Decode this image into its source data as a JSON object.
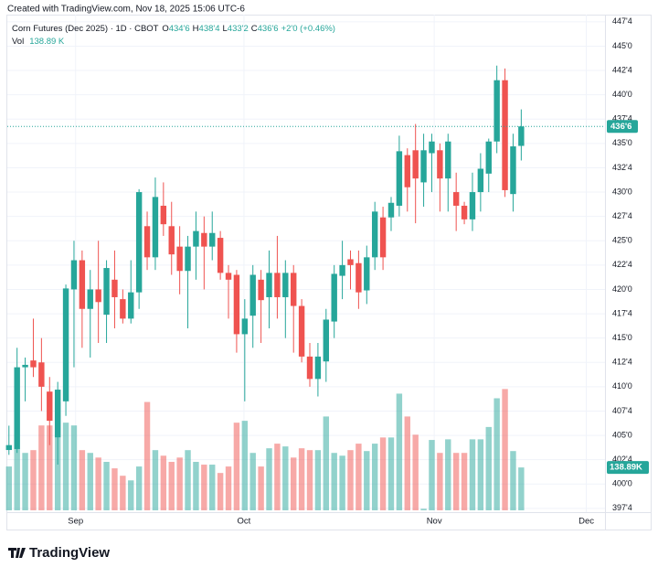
{
  "chart_data": {
    "type": "candlestick",
    "created": "Created with TradingView.com, Nov 18, 2025 15:06 UTC-6",
    "symbol": "Corn Futures (Dec 2025) · 1D · CBOT",
    "ohlc_legend": [
      {
        "label": "O",
        "value": "434'6"
      },
      {
        "label": "H",
        "value": "438'4"
      },
      {
        "label": "L",
        "value": "433'2"
      },
      {
        "label": "C",
        "value": "436'6"
      }
    ],
    "change": "+2'0 (+0.46%)",
    "volume_legend": {
      "label": "Vol",
      "value": "138.89 K"
    },
    "brand": "TradingView",
    "up_color": "#26a69a",
    "down_color": "#ef5350",
    "grid": true,
    "xlim": [
      -0.2,
      73.3
    ],
    "xticks": [
      {
        "value": 8.2,
        "label": "Sep"
      },
      {
        "value": 28.9,
        "label": "Oct"
      },
      {
        "value": 52.3,
        "label": "Nov"
      },
      {
        "value": 71.0,
        "label": "Dec"
      }
    ],
    "ylim": [
      397.3,
      448.05
    ],
    "yticks": [
      {
        "value": 397.5,
        "label": "397'4"
      },
      {
        "value": 400,
        "label": "400'0"
      },
      {
        "value": 402.5,
        "label": "402'4"
      },
      {
        "value": 405,
        "label": "405'0"
      },
      {
        "value": 407.5,
        "label": "407'4"
      },
      {
        "value": 410,
        "label": "410'0"
      },
      {
        "value": 412.5,
        "label": "412'4"
      },
      {
        "value": 415,
        "label": "415'0"
      },
      {
        "value": 417.5,
        "label": "417'4"
      },
      {
        "value": 420,
        "label": "420'0"
      },
      {
        "value": 422.5,
        "label": "422'4"
      },
      {
        "value": 425,
        "label": "425'0"
      },
      {
        "value": 427.5,
        "label": "427'4"
      },
      {
        "value": 430,
        "label": "430'0"
      },
      {
        "value": 432.5,
        "label": "432'4"
      },
      {
        "value": 435,
        "label": "435'0"
      },
      {
        "value": 437.5,
        "label": "437'4"
      },
      {
        "value": 440,
        "label": "440'0"
      },
      {
        "value": 442.5,
        "label": "442'4"
      },
      {
        "value": 445,
        "label": "445'0"
      },
      {
        "value": 447.5,
        "label": "447'4"
      }
    ],
    "last_price": {
      "value": 436.75,
      "label": "436'6"
    },
    "y2lim": [
      0,
      1600
    ],
    "open": [
      403.5,
      403.6,
      412,
      412.7,
      412.5,
      409.5,
      404.8,
      408.5,
      420,
      423,
      418,
      420,
      417.4,
      421,
      419,
      417,
      419.7,
      426.5,
      423.3,
      428.6,
      426.5,
      424.4,
      421.9,
      424.4,
      425.8,
      424.4,
      425.3,
      421.7,
      421.5,
      415.4,
      417.3,
      421,
      419.2,
      421.7,
      419.2,
      421.7,
      418.3,
      413.1,
      410.8,
      412.6,
      416.7,
      421.4,
      423.1,
      422.7,
      419.9,
      423.3,
      427.4,
      427.4,
      428.6,
      433.8,
      434.3,
      431,
      434,
      434.3,
      431.4,
      430,
      428.6,
      427.2,
      430,
      431.9,
      435.2,
      441.5,
      429.8,
      434.75
    ],
    "high": [
      406,
      414,
      413,
      417,
      415,
      411,
      410.5,
      420.5,
      425,
      424,
      422,
      425,
      423,
      424,
      420,
      423,
      430.3,
      428,
      431.5,
      431,
      429,
      426.5,
      425.5,
      428,
      427.5,
      428,
      426,
      422.5,
      422,
      419,
      422.5,
      422,
      424,
      425.5,
      423,
      422.5,
      419,
      414.5,
      414.5,
      418,
      422.5,
      425,
      424,
      424,
      424.5,
      429,
      428.5,
      429.5,
      435.8,
      434.5,
      437,
      436,
      436,
      435,
      436,
      432,
      429,
      432,
      434,
      435.5,
      443,
      442.7,
      436,
      438.5
    ],
    "low": [
      403,
      403.2,
      408.5,
      411,
      407.5,
      404,
      402,
      407,
      412,
      414,
      413,
      414.5,
      414.5,
      416,
      416.5,
      416.5,
      418,
      422,
      422,
      425.5,
      421.5,
      419.5,
      416,
      421,
      420,
      423,
      421,
      417,
      413.5,
      408.5,
      414,
      414.5,
      416,
      417,
      415,
      413.5,
      412.5,
      410,
      409,
      410.5,
      415,
      419,
      420,
      418,
      418.5,
      422,
      422,
      426,
      427.5,
      428,
      426.8,
      428.5,
      430,
      428,
      428,
      426,
      426.7,
      426,
      428,
      430,
      434,
      429.5,
      428,
      433.25
    ],
    "close": [
      404,
      412,
      412.25,
      412,
      410,
      406.5,
      409.7,
      420.1,
      423,
      418,
      420,
      418.7,
      422.2,
      419.2,
      417,
      419.7,
      430,
      423.3,
      429.5,
      426.7,
      423.6,
      421.9,
      424.4,
      426,
      424.4,
      425.8,
      421.7,
      421,
      415.4,
      417,
      421.5,
      418.9,
      421.7,
      419.2,
      421.7,
      418.3,
      413.1,
      410.8,
      413.1,
      416.9,
      421.6,
      422.5,
      422.5,
      419.7,
      423.3,
      428,
      423.3,
      428.9,
      434.2,
      430.5,
      431.4,
      434.3,
      435.2,
      431.4,
      435.2,
      428.6,
      427.2,
      430,
      432.4,
      435.2,
      441.5,
      430.2,
      434.7,
      436.75
    ],
    "volume": {
      "axis": "y2",
      "values": [
        142,
        200,
        186,
        195,
        275,
        275,
        351,
        284,
        275,
        195,
        186,
        171,
        157,
        136,
        112,
        97,
        142,
        351,
        195,
        177,
        157,
        171,
        195,
        157,
        148,
        148,
        121,
        142,
        284,
        290,
        186,
        142,
        201,
        216,
        207,
        171,
        201,
        195,
        195,
        304,
        186,
        177,
        195,
        216,
        192,
        216,
        236,
        236,
        378,
        304,
        245,
        5,
        228,
        186,
        230,
        186,
        186,
        230,
        230,
        270,
        363,
        393,
        192,
        138.89
      ],
      "value_labels": [
        null,
        null,
        null,
        null,
        null,
        null,
        null,
        null,
        null,
        null,
        null,
        null,
        null,
        null,
        null,
        null,
        null,
        null,
        null,
        null,
        null,
        null,
        null,
        null,
        null,
        null,
        null,
        null,
        null,
        null,
        null,
        null,
        null,
        null,
        null,
        null,
        null,
        null,
        null,
        null,
        null,
        null,
        null,
        null,
        null,
        null,
        null,
        null,
        null,
        null,
        null,
        null,
        null,
        null,
        null,
        null,
        null,
        null,
        null,
        null,
        null,
        null,
        null,
        "138.89K"
      ]
    }
  }
}
